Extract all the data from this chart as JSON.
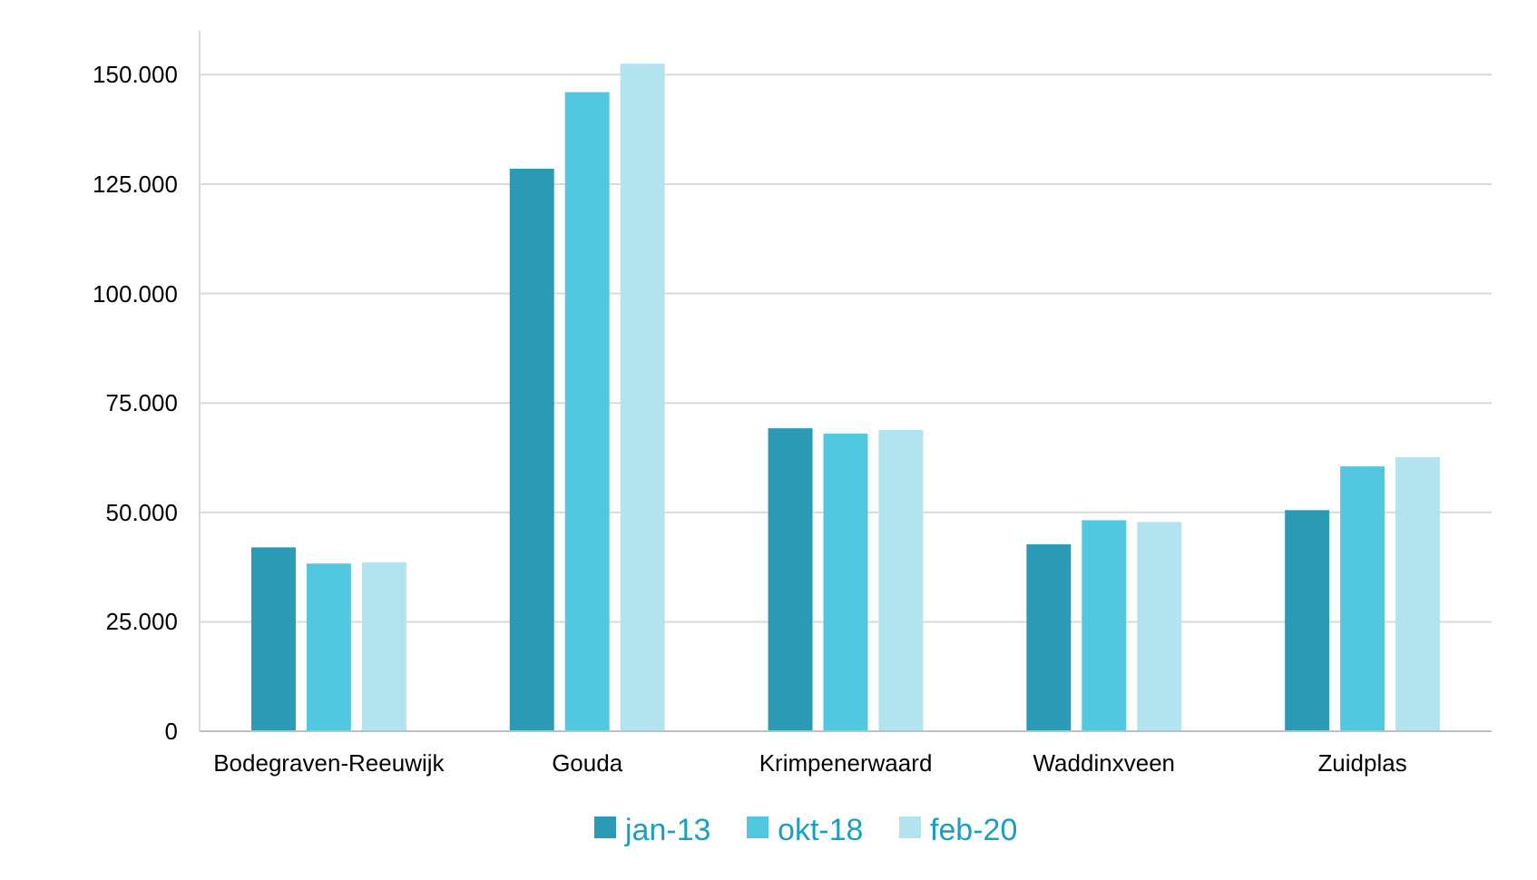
{
  "chart_data": {
    "type": "bar",
    "categories": [
      "Bodegraven-Reeuwijk",
      "Gouda",
      "Krimpenerwaard",
      "Waddinxveen",
      "Zuidplas"
    ],
    "series": [
      {
        "name": "jan-13",
        "color": "#2a9ab5",
        "values": [
          42000,
          128500,
          69200,
          42700,
          50500
        ]
      },
      {
        "name": "okt-18",
        "color": "#52c8e0",
        "values": [
          38300,
          146000,
          68000,
          48200,
          60500
        ]
      },
      {
        "name": "feb-20",
        "color": "#b3e3ef",
        "values": [
          38600,
          152500,
          68800,
          47800,
          62600
        ]
      }
    ],
    "ylim": [
      0,
      160000
    ],
    "yticks": [
      {
        "value": 0,
        "label": "0"
      },
      {
        "value": 25000,
        "label": "25.000"
      },
      {
        "value": 50000,
        "label": "50.000"
      },
      {
        "value": 75000,
        "label": "75.000"
      },
      {
        "value": 100000,
        "label": "100.000"
      },
      {
        "value": 125000,
        "label": "125.000"
      },
      {
        "value": 150000,
        "label": "150.000"
      }
    ],
    "grid": "y",
    "legend": "bottom"
  }
}
